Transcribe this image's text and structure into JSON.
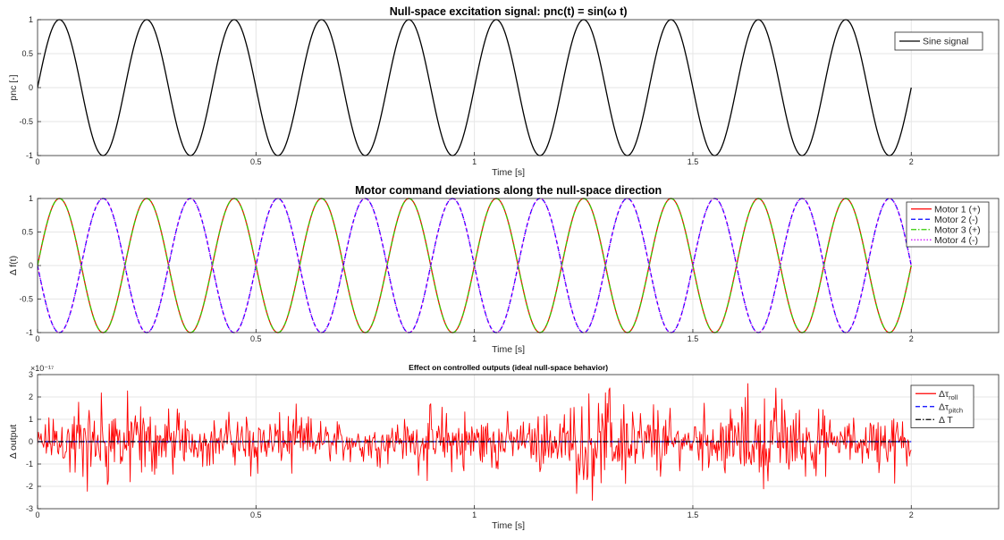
{
  "chart_data": [
    {
      "type": "line",
      "title": "Null-space  excitation signal:   pnc(t)  =  sin(ω  t)",
      "xlabel": "Time [s]",
      "ylabel": "pnc [-]",
      "xlim": [
        0,
        2.2
      ],
      "ylim": [
        -1,
        1
      ],
      "xticks": [
        0,
        0.5,
        1,
        1.5,
        2
      ],
      "xtick_labels": [
        "0",
        "0.5",
        "1",
        "1.5",
        "2"
      ],
      "yticks": [
        -1,
        -0.5,
        0,
        0.5,
        1
      ],
      "ytick_labels": [
        "-1",
        "-0.5",
        "0",
        "0.5",
        "1"
      ],
      "grid": true,
      "legend_position": "top-right",
      "x_range": [
        0,
        2
      ],
      "series": [
        {
          "name": "Sine signal",
          "function": "sine",
          "frequency_hz": 5,
          "amplitude": 1,
          "sign": 1,
          "color": "#000000",
          "dash": "solid"
        }
      ]
    },
    {
      "type": "line",
      "title": "Motor command deviations along the null-space direction",
      "xlabel": "Time [s]",
      "ylabel": "Δ  f(t)",
      "xlim": [
        0,
        2.2
      ],
      "ylim": [
        -1,
        1
      ],
      "xticks": [
        0,
        0.5,
        1,
        1.5,
        2
      ],
      "xtick_labels": [
        "0",
        "0.5",
        "1",
        "1.5",
        "2"
      ],
      "yticks": [
        -1,
        -0.5,
        0,
        0.5,
        1
      ],
      "ytick_labels": [
        "-1",
        "-0.5",
        "0",
        "0.5",
        "1"
      ],
      "grid": true,
      "legend_position": "top-right",
      "x_range": [
        0,
        2
      ],
      "series": [
        {
          "name": "Motor 1 (+)",
          "function": "sine",
          "frequency_hz": 5,
          "amplitude": 1,
          "sign": 1,
          "color": "#ff0000",
          "dash": "solid"
        },
        {
          "name": "Motor 2 (-)",
          "function": "sine",
          "frequency_hz": 5,
          "amplitude": 1,
          "sign": -1,
          "color": "#0000ff",
          "dash": "dashed"
        },
        {
          "name": "Motor 3 (+)",
          "function": "sine",
          "frequency_hz": 5,
          "amplitude": 1,
          "sign": 1,
          "color": "#33cc00",
          "dash": "dashdot"
        },
        {
          "name": "Motor 4 (-)",
          "function": "sine",
          "frequency_hz": 5,
          "amplitude": 1,
          "sign": -1,
          "color": "#cc00ff",
          "dash": "dotted"
        }
      ]
    },
    {
      "type": "line",
      "title": "Effect on controlled outputs (ideal null-space behavior)",
      "xlabel": "Time [s]",
      "ylabel": "Δ  output",
      "y_exponent_label": "×10⁻¹⁷",
      "xlim": [
        0,
        2.2
      ],
      "ylim": [
        -3,
        3
      ],
      "xticks": [
        0,
        0.5,
        1,
        1.5,
        2
      ],
      "xtick_labels": [
        "0",
        "0.5",
        "1",
        "1.5",
        "2"
      ],
      "yticks": [
        -3,
        -2,
        -1,
        0,
        1,
        2,
        3
      ],
      "ytick_labels": [
        "-3",
        "-2",
        "-1",
        "0",
        "1",
        "2",
        "3"
      ],
      "grid": true,
      "legend_position": "top-right",
      "x_range": [
        0,
        2
      ],
      "noise_peak": 2.8,
      "series": [
        {
          "name": "Δτ",
          "subscript": "roll",
          "function": "noise",
          "color": "#ff0000",
          "dash": "solid"
        },
        {
          "name": "Δτ",
          "subscript": "pitch",
          "function": "zero",
          "color": "#0000ff",
          "dash": "dashed"
        },
        {
          "name": "Δ  T",
          "subscript": "",
          "function": "zero",
          "color": "#000000",
          "dash": "dashdot"
        }
      ]
    }
  ]
}
